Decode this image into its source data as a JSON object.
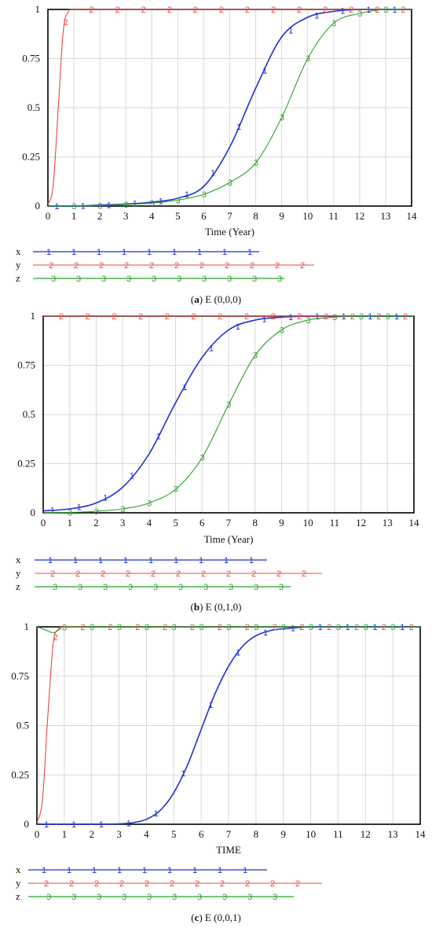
{
  "chart_data": [
    {
      "type": "line",
      "panel_label": "a",
      "caption": "E (0,0,0)",
      "xlabel": "Time (Year)",
      "xlim": [
        0,
        14
      ],
      "ylim": [
        0,
        1
      ],
      "xticks": [
        "0",
        "1",
        "2",
        "3",
        "4",
        "5",
        "6",
        "7",
        "8",
        "9",
        "10",
        "11",
        "12",
        "13",
        "14"
      ],
      "yticks": [
        "0",
        "0.25",
        "0.5",
        "0.75",
        "1"
      ],
      "series": [
        {
          "name": "x",
          "marker": "1",
          "color": "#1f2fd0",
          "x": [
            0,
            1,
            2,
            3,
            4,
            5,
            6,
            7,
            8,
            9,
            10,
            11,
            12,
            13,
            14
          ],
          "y": [
            0,
            0,
            0.005,
            0.01,
            0.02,
            0.04,
            0.1,
            0.3,
            0.6,
            0.86,
            0.96,
            0.99,
            1,
            1,
            1
          ]
        },
        {
          "name": "y",
          "marker": "2",
          "color": "#e8473f",
          "x": [
            0,
            0.2,
            0.4,
            0.6,
            0.8,
            1,
            2,
            3,
            4,
            5,
            6,
            7,
            8,
            9,
            10,
            11,
            12,
            13,
            14
          ],
          "y": [
            0.01,
            0.1,
            0.5,
            0.9,
            0.99,
            1,
            1,
            1,
            1,
            1,
            1,
            1,
            1,
            1,
            1,
            1,
            1,
            1,
            1
          ]
        },
        {
          "name": "z",
          "marker": "3",
          "color": "#2ca02c",
          "x": [
            0,
            1,
            2,
            3,
            4,
            5,
            6,
            7,
            8,
            9,
            10,
            11,
            12,
            13,
            14
          ],
          "y": [
            0,
            0,
            0.002,
            0.008,
            0.015,
            0.03,
            0.06,
            0.12,
            0.22,
            0.45,
            0.75,
            0.93,
            0.98,
            1,
            1
          ]
        }
      ]
    },
    {
      "type": "line",
      "panel_label": "b",
      "caption": "E (0,1,0)",
      "xlabel": "Time (Year)",
      "xlim": [
        0,
        14
      ],
      "ylim": [
        0,
        1
      ],
      "xticks": [
        "0",
        "1",
        "2",
        "3",
        "4",
        "5",
        "6",
        "7",
        "8",
        "9",
        "10",
        "11",
        "12",
        "13",
        "14"
      ],
      "yticks": [
        "0",
        "0.25",
        "0.5",
        "0.75",
        "1"
      ],
      "series": [
        {
          "name": "x",
          "marker": "1",
          "color": "#1f2fd0",
          "x": [
            0,
            1,
            2,
            3,
            4,
            5,
            6,
            7,
            8,
            9,
            10,
            11,
            12,
            13,
            14
          ],
          "y": [
            0.01,
            0.02,
            0.05,
            0.13,
            0.3,
            0.56,
            0.79,
            0.93,
            0.98,
            0.995,
            1,
            1,
            1,
            1,
            1
          ]
        },
        {
          "name": "y",
          "marker": "2",
          "color": "#e8473f",
          "x": [
            0,
            1,
            2,
            3,
            4,
            5,
            6,
            7,
            8,
            9,
            10,
            11,
            12,
            13,
            14
          ],
          "y": [
            1,
            1,
            1,
            1,
            1,
            1,
            1,
            1,
            1,
            1,
            1,
            1,
            1,
            1,
            1
          ]
        },
        {
          "name": "z",
          "marker": "3",
          "color": "#2ca02c",
          "x": [
            0,
            1,
            2,
            3,
            4,
            5,
            6,
            7,
            8,
            9,
            10,
            11,
            12,
            13,
            14
          ],
          "y": [
            0,
            0.002,
            0.008,
            0.02,
            0.05,
            0.12,
            0.28,
            0.55,
            0.8,
            0.93,
            0.98,
            0.995,
            1,
            1,
            1
          ]
        }
      ]
    },
    {
      "type": "line",
      "panel_label": "c",
      "caption": "E (0,0,1)",
      "xlabel": "TIME",
      "xlim": [
        0,
        14
      ],
      "ylim": [
        0,
        1
      ],
      "xticks": [
        "0",
        "1",
        "2",
        "3",
        "4",
        "5",
        "6",
        "7",
        "8",
        "9",
        "10",
        "11",
        "12",
        "13",
        "14"
      ],
      "yticks": [
        "0",
        "0.25",
        "0.5",
        "0.75",
        "1"
      ],
      "series": [
        {
          "name": "x",
          "marker": "1",
          "color": "#1f2fd0",
          "x": [
            0,
            1,
            2,
            3,
            3.5,
            4,
            4.5,
            5,
            5.5,
            6,
            6.5,
            7,
            7.5,
            8,
            8.5,
            9,
            10,
            11,
            12,
            13,
            14
          ],
          "y": [
            0,
            0,
            0,
            0.002,
            0.008,
            0.025,
            0.07,
            0.16,
            0.3,
            0.48,
            0.66,
            0.8,
            0.9,
            0.955,
            0.98,
            0.99,
            1,
            1,
            1,
            1,
            1
          ]
        },
        {
          "name": "y",
          "marker": "2",
          "color": "#e8473f",
          "x": [
            0,
            0.2,
            0.4,
            0.6,
            0.8,
            1,
            2,
            3,
            4,
            5,
            6,
            7,
            8,
            9,
            10,
            11,
            12,
            13,
            14
          ],
          "y": [
            0.01,
            0.12,
            0.55,
            0.92,
            0.99,
            1,
            1,
            1,
            1,
            1,
            1,
            1,
            1,
            1,
            1,
            1,
            1,
            1,
            1
          ]
        },
        {
          "name": "z",
          "marker": "3",
          "color": "#2ca02c",
          "x": [
            0,
            0.3,
            0.6,
            0.8,
            1,
            2,
            3,
            4,
            5,
            6,
            7,
            8,
            9,
            10,
            11,
            12,
            13,
            14
          ],
          "y": [
            1,
            0.985,
            0.97,
            0.985,
            0.998,
            1,
            1,
            1,
            1,
            1,
            1,
            1,
            1,
            1,
            1,
            1,
            1,
            1
          ]
        }
      ]
    }
  ],
  "legend": [
    {
      "label": "x",
      "marker": "1",
      "color": "#1f2fd0"
    },
    {
      "label": "y",
      "marker": "2",
      "color": "#e8473f"
    },
    {
      "label": "z",
      "marker": "3",
      "color": "#2ca02c"
    }
  ]
}
